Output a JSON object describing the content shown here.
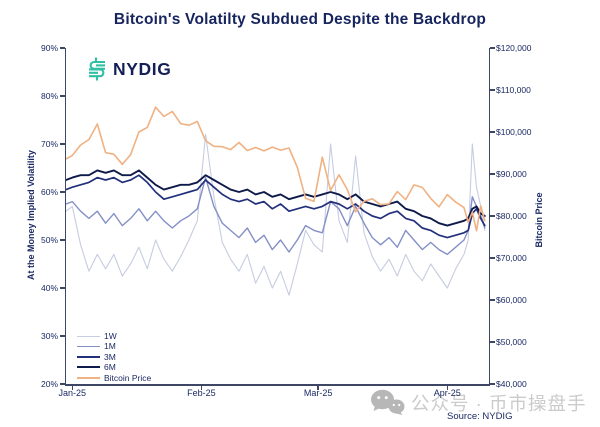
{
  "logo": {
    "text": "NYDIG",
    "icon": "nydig-dollar-mark",
    "icon_color": "#2ebfa5",
    "text_color": "#131f56"
  },
  "source_label": "Source: NYDIG",
  "watermark": {
    "icon": "wechat-icon",
    "text": "公众号 · 币市操盘手",
    "color": "#c3c3c3"
  },
  "colors": {
    "title_text": "#17255e",
    "axis_text": "#1b2a63",
    "axis_line": "#3d4664",
    "background": "#ffffff"
  },
  "chart_data": {
    "type": "line",
    "title": "Bitcoin's Volatilty Subdued Despite the Backdrop",
    "grid": false,
    "legend_position": "bottom-left-inside",
    "x_unit": "days since Jan 1, 2025",
    "x_range_days": [
      -1.5,
      100
    ],
    "x_ticks": [
      {
        "label": "Jan-25",
        "day": 0
      },
      {
        "label": "Feb-25",
        "day": 31
      },
      {
        "label": "Mar-25",
        "day": 59
      },
      {
        "label": "Apr-25",
        "day": 90
      }
    ],
    "left_axis": {
      "label": "At the Money Implied Volatility",
      "range": [
        20,
        90
      ],
      "ticks": [
        {
          "value": 90,
          "label": "90%"
        },
        {
          "value": 80,
          "label": "80%"
        },
        {
          "value": 70,
          "label": "70%"
        },
        {
          "value": 60,
          "label": "60%"
        },
        {
          "value": 50,
          "label": "50%"
        },
        {
          "value": 40,
          "label": "40%"
        },
        {
          "value": 30,
          "label": "30%"
        },
        {
          "value": 20,
          "label": "20%"
        }
      ]
    },
    "right_axis": {
      "label": "Bitcoin Price",
      "range": [
        40000,
        120000
      ],
      "ticks": [
        {
          "value": 120000,
          "label": "$120,000"
        },
        {
          "value": 110000,
          "label": "$110,000"
        },
        {
          "value": 100000,
          "label": "$100,000"
        },
        {
          "value": 90000,
          "label": "$90,000"
        },
        {
          "value": 80000,
          "label": "$80,000"
        },
        {
          "value": 70000,
          "label": "$70,000"
        },
        {
          "value": 60000,
          "label": "$60,000"
        },
        {
          "value": 50000,
          "label": "$50,000"
        },
        {
          "value": 40000,
          "label": "$40,000"
        }
      ]
    },
    "x": [
      -1.5,
      0,
      2,
      4,
      6,
      8,
      10,
      12,
      14,
      16,
      18,
      20,
      22,
      24,
      26,
      28,
      30,
      32,
      34,
      36,
      38,
      40,
      42,
      44,
      46,
      48,
      50,
      52,
      54,
      56,
      58,
      60,
      62,
      64,
      66,
      68,
      70,
      72,
      74,
      76,
      78,
      80,
      82,
      84,
      86,
      88,
      90,
      92,
      94,
      95,
      96,
      97,
      98,
      99
    ],
    "series": [
      {
        "name": "1W",
        "axis": "left",
        "color": "#c7cce1",
        "width": 1.1,
        "values": [
          56,
          57,
          49,
          43.5,
          47,
          44,
          47,
          42.5,
          45,
          48.5,
          44,
          50,
          46,
          43.5,
          46.5,
          50,
          54,
          72,
          59,
          49.5,
          46,
          43.5,
          47,
          41,
          44.5,
          40,
          43.5,
          38.5,
          45,
          52,
          49,
          47.5,
          70,
          54,
          49.5,
          67.5,
          51.5,
          46.5,
          43.5,
          46,
          42.5,
          47,
          43.5,
          41.5,
          45,
          42.5,
          40,
          44,
          47,
          50,
          70,
          61,
          57,
          52
        ]
      },
      {
        "name": "1M",
        "axis": "left",
        "color": "#8490c6",
        "width": 1.4,
        "values": [
          57.5,
          58,
          56,
          54.5,
          56,
          53.5,
          55.5,
          53,
          54.5,
          56.5,
          54,
          56,
          54,
          52.5,
          54,
          55,
          56.5,
          63,
          57,
          53.5,
          52,
          50.5,
          52.5,
          49.5,
          51,
          48,
          50,
          47.5,
          50,
          53,
          52,
          51.5,
          58,
          56.5,
          53,
          57,
          53.5,
          50.5,
          49,
          50.5,
          48.5,
          52,
          50,
          48,
          49.5,
          48,
          47,
          48.5,
          50,
          52,
          59,
          57,
          55,
          52.5
        ]
      },
      {
        "name": "3M",
        "axis": "left",
        "color": "#22307c",
        "width": 1.7,
        "values": [
          60.5,
          61,
          61.5,
          62,
          63,
          62.5,
          63,
          62,
          62.5,
          63.5,
          62,
          60,
          58.5,
          59,
          59.5,
          60,
          60.5,
          62.5,
          61,
          59.5,
          58.5,
          58,
          58.5,
          57.5,
          58,
          56.5,
          57.5,
          56,
          56.5,
          57,
          56.5,
          57,
          58,
          57.5,
          56.5,
          57.5,
          56,
          55,
          54.5,
          55.5,
          56,
          54.5,
          54,
          52.5,
          52,
          51,
          50.5,
          51,
          51.5,
          52,
          55.5,
          56.5,
          54.5,
          53
        ]
      },
      {
        "name": "6M",
        "axis": "left",
        "color": "#0e1a4a",
        "width": 1.9,
        "values": [
          62.5,
          63,
          63.5,
          63.5,
          64.5,
          64,
          64.5,
          63.5,
          63.5,
          64.5,
          63,
          61.5,
          60.5,
          61,
          61.5,
          61.5,
          62,
          63.5,
          62.5,
          61.5,
          60.5,
          60,
          60.5,
          59.5,
          60,
          59,
          59.5,
          58.5,
          59,
          59.5,
          59,
          59.5,
          60,
          59.5,
          58.5,
          59.5,
          58,
          57.5,
          57,
          57.5,
          58,
          56.5,
          56,
          55,
          54.5,
          53.5,
          53,
          53.5,
          54,
          54.5,
          56.5,
          57,
          55.5,
          55
        ]
      },
      {
        "name": "Bitcoin Price",
        "axis": "right",
        "color": "#f0b183",
        "width": 1.6,
        "values": [
          93600,
          94400,
          96900,
          98200,
          101900,
          95100,
          94700,
          92300,
          94600,
          100000,
          101100,
          105900,
          103700,
          104900,
          102000,
          101600,
          102500,
          97900,
          96600,
          96500,
          95800,
          97500,
          95600,
          96300,
          95500,
          96400,
          95700,
          96200,
          91600,
          84200,
          83500,
          94000,
          86100,
          89800,
          86300,
          81000,
          83500,
          84100,
          82700,
          82900,
          85800,
          83900,
          87400,
          86800,
          84200,
          82200,
          85100,
          83300,
          82000,
          78500,
          80900,
          76500,
          82400,
          78900
        ]
      }
    ]
  }
}
